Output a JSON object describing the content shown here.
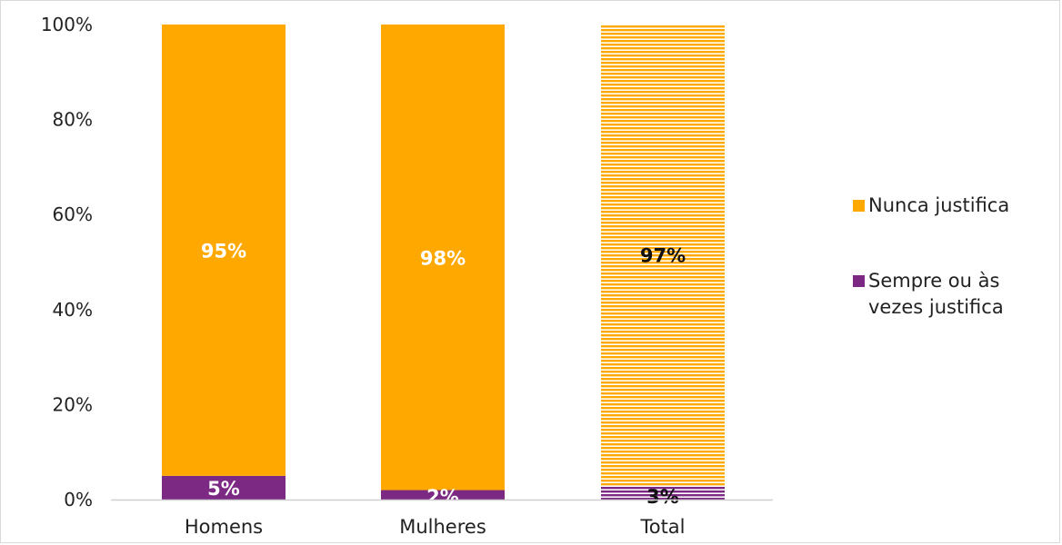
{
  "chart_data": {
    "type": "bar",
    "stacked": true,
    "percent": true,
    "categories": [
      "Homens",
      "Mulheres",
      "Total"
    ],
    "series": [
      {
        "name": "Sempre ou às vezes justifica",
        "values": [
          5,
          2,
          3
        ],
        "labels": [
          "5%",
          "2%",
          "3%"
        ],
        "color": "#7b2982"
      },
      {
        "name": "Nunca justifica",
        "values": [
          95,
          98,
          97
        ],
        "labels": [
          "95%",
          "98%",
          "97%"
        ],
        "color": "#ffa800"
      }
    ],
    "highlighted_category": "Total",
    "highlight_pattern": "horizontal-stripes",
    "y_ticks": [
      "0%",
      "20%",
      "40%",
      "60%",
      "80%",
      "100%"
    ],
    "ylim": [
      0,
      100
    ],
    "grid": false,
    "legend_position": "right"
  }
}
